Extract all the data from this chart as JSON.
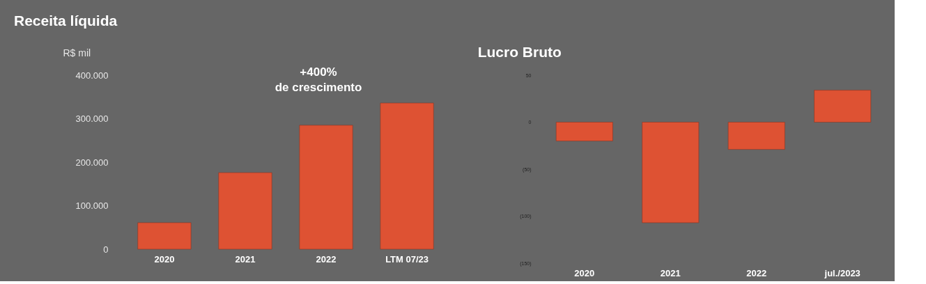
{
  "chart_data": [
    {
      "type": "bar",
      "title": "Receita líquida",
      "ylabel": "R$ mil",
      "categories": [
        "2020",
        "2021",
        "2022",
        "LTM 07/23"
      ],
      "values": [
        61000,
        176000,
        285000,
        336000
      ],
      "color": "#de5233",
      "ylim": [
        0,
        400000
      ],
      "yticks": [
        0,
        {
          "value": 100000,
          "label": "100.000"
        },
        {
          "value": 200000,
          "label": "200.000"
        },
        {
          "value": 300000,
          "label": "300.000"
        },
        {
          "value": 400000,
          "label": "400.000"
        }
      ],
      "annotations": [
        "+400%\nde crescimento"
      ],
      "grid": false
    },
    {
      "type": "bar",
      "title": "Lucro Bruto",
      "categories": [
        "2020",
        "2021",
        "2022",
        "jul./2023"
      ],
      "values": [
        -20,
        -107,
        -29,
        34
      ],
      "color": "#de5233",
      "ylim": [
        -150,
        50
      ],
      "yticks": [
        {
          "value": -150,
          "label": "(150)"
        },
        {
          "value": -100,
          "label": "(100)"
        },
        {
          "value": -50,
          "label": "(50)"
        },
        0,
        50
      ],
      "grid": false
    }
  ]
}
